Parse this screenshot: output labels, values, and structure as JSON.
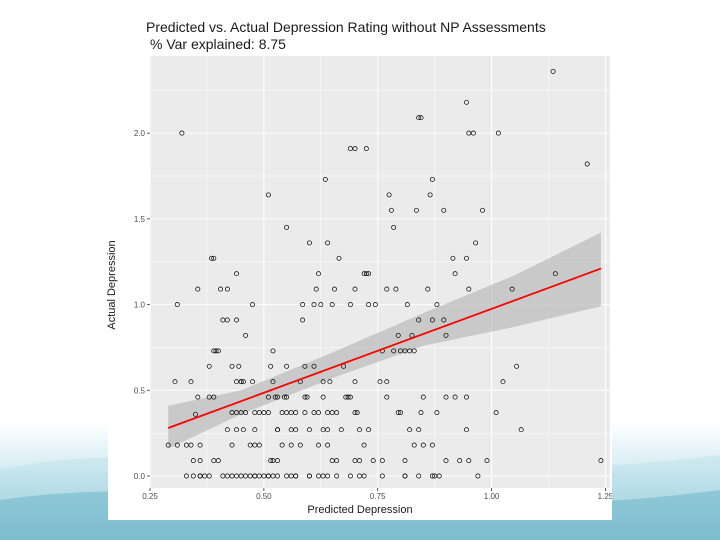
{
  "chart_data": {
    "type": "scatter",
    "title": "Predicted vs. Actual Depression Rating without NP Assessments",
    "subtitle": "% Var explained: 8.75",
    "xlabel": "Predicted Depression",
    "ylabel": "Actual Depression",
    "xlim": [
      0.25,
      1.26
    ],
    "ylim": [
      -0.07,
      2.45
    ],
    "x_ticks": [
      0.25,
      0.5,
      0.75,
      1.0,
      1.25
    ],
    "x_tick_labels": [
      "0.25",
      "0.50",
      "0.75",
      "1.00",
      "1.25"
    ],
    "y_ticks": [
      0.0,
      0.5,
      1.0,
      1.5,
      2.0
    ],
    "y_tick_labels": [
      "0.0",
      "0.5",
      "1.0",
      "1.5",
      "2.0"
    ],
    "grid": true,
    "colors": {
      "panel": "#ebebeb",
      "grid": "#ffffff",
      "line": "#ff0000",
      "band": "#bdbdbd",
      "points": "#000000"
    },
    "fit_line": {
      "x": [
        0.29,
        1.24
      ],
      "y": [
        0.28,
        1.21
      ]
    },
    "confidence_band": {
      "x": [
        0.29,
        0.45,
        0.65,
        0.85,
        1.05,
        1.24
      ],
      "lower": [
        0.16,
        0.36,
        0.57,
        0.76,
        0.87,
        0.99
      ],
      "upper": [
        0.41,
        0.5,
        0.72,
        0.95,
        1.17,
        1.42
      ]
    },
    "points": {
      "x": [
        1.135,
        0.945,
        0.32,
        1.015,
        0.96,
        0.95,
        0.84,
        0.845,
        1.21,
        0.69,
        0.7,
        0.725,
        0.635,
        0.775,
        0.87,
        0.51,
        0.865,
        0.78,
        0.835,
        0.895,
        0.55,
        0.6,
        0.64,
        0.785,
        0.98,
        0.965,
        0.915,
        0.945,
        0.39,
        0.385,
        0.665,
        0.62,
        0.72,
        0.725,
        0.73,
        0.44,
        0.405,
        0.42,
        0.79,
        0.77,
        1.045,
        0.95,
        0.86,
        0.92,
        0.655,
        0.615,
        0.625,
        0.7,
        0.355,
        0.31,
        0.475,
        0.585,
        0.61,
        0.65,
        0.69,
        0.73,
        0.745,
        0.815,
        0.88,
        0.84,
        0.87,
        0.895,
        0.41,
        0.42,
        0.44,
        0.825,
        0.795,
        0.46,
        0.585,
        0.82,
        0.9,
        1.14,
        0.39,
        0.395,
        0.52,
        0.83,
        0.785,
        0.76,
        0.8,
        0.81,
        0.4,
        0.445,
        0.305,
        0.34,
        0.38,
        0.43,
        0.55,
        0.59,
        0.61,
        0.58,
        0.63,
        0.675,
        0.7,
        0.755,
        0.77,
        1.055,
        1.025,
        0.515,
        0.52,
        0.44,
        0.45,
        0.45,
        0.455,
        0.475,
        0.59,
        0.63,
        0.68,
        0.645,
        0.77,
        0.92,
        0.945,
        0.355,
        0.38,
        0.39,
        0.51,
        0.525,
        0.545,
        0.53,
        0.55,
        0.595,
        0.685,
        0.69,
        0.55,
        0.61,
        0.64,
        0.7,
        0.65,
        0.705,
        0.795,
        0.8,
        0.845,
        0.85,
        0.88,
        0.9,
        0.35,
        0.43,
        0.44,
        0.45,
        0.46,
        0.48,
        0.49,
        0.5,
        0.51,
        0.54,
        0.56,
        0.57,
        0.59,
        0.62,
        0.66,
        0.42,
        0.44,
        0.455,
        0.48,
        0.53,
        0.53,
        0.56,
        0.57,
        0.6,
        0.63,
        0.64,
        0.67,
        0.71,
        0.73,
        0.82,
        0.84,
        1.01,
        0.34,
        0.36,
        0.43,
        0.47,
        0.48,
        0.49,
        0.54,
        0.56,
        0.58,
        0.62,
        0.64,
        0.72,
        0.83,
        0.85,
        0.87,
        0.945,
        1.065,
        0.29,
        0.31,
        0.33,
        0.345,
        0.36,
        0.39,
        0.4,
        0.52,
        0.515,
        0.53,
        0.65,
        0.66,
        0.7,
        0.71,
        0.74,
        0.76,
        0.81,
        0.33,
        0.345,
        0.36,
        0.38,
        0.41,
        0.43,
        0.45,
        0.47,
        0.48,
        0.5,
        0.51,
        0.52,
        0.56,
        0.57,
        0.6,
        0.62,
        0.64,
        0.69,
        0.72,
        0.81,
        0.84,
        0.87,
        0.9,
        0.93,
        0.95,
        0.99,
        1.24,
        0.36,
        0.37,
        0.42,
        0.44,
        0.46,
        0.48,
        0.49,
        0.51,
        0.53,
        0.55,
        0.57,
        0.6,
        0.63,
        0.66,
        0.71,
        0.76,
        0.81,
        0.875,
        0.885,
        0.97
      ],
      "y": [
        2.36,
        2.18,
        2.0,
        2.0,
        2.0,
        2.0,
        2.09,
        2.09,
        1.82,
        1.91,
        1.91,
        1.91,
        1.73,
        1.64,
        1.73,
        1.64,
        1.64,
        1.55,
        1.55,
        1.55,
        1.45,
        1.36,
        1.36,
        1.45,
        1.55,
        1.36,
        1.27,
        1.27,
        1.27,
        1.27,
        1.27,
        1.18,
        1.18,
        1.18,
        1.18,
        1.18,
        1.09,
        1.09,
        1.09,
        1.09,
        1.09,
        1.09,
        1.09,
        1.18,
        1.09,
        1.09,
        1.0,
        1.09,
        1.09,
        1.0,
        1.0,
        1.0,
        1.0,
        1.0,
        1.0,
        1.0,
        1.0,
        1.0,
        1.0,
        0.91,
        0.91,
        0.91,
        0.91,
        0.91,
        0.91,
        0.82,
        0.82,
        0.82,
        0.91,
        0.73,
        0.82,
        1.18,
        0.73,
        0.73,
        0.73,
        0.73,
        0.73,
        0.73,
        0.73,
        0.73,
        0.73,
        0.64,
        0.55,
        0.55,
        0.64,
        0.64,
        0.64,
        0.64,
        0.64,
        0.55,
        0.55,
        0.64,
        0.55,
        0.55,
        0.55,
        0.64,
        0.55,
        0.64,
        0.55,
        0.55,
        0.55,
        0.55,
        0.55,
        0.55,
        0.46,
        0.46,
        0.46,
        0.55,
        0.46,
        0.46,
        0.46,
        0.46,
        0.46,
        0.46,
        0.46,
        0.46,
        0.46,
        0.46,
        0.46,
        0.46,
        0.46,
        0.46,
        0.37,
        0.37,
        0.37,
        0.37,
        0.37,
        0.37,
        0.37,
        0.37,
        0.37,
        0.46,
        0.37,
        0.46,
        0.36,
        0.37,
        0.37,
        0.37,
        0.37,
        0.37,
        0.37,
        0.37,
        0.37,
        0.37,
        0.37,
        0.37,
        0.37,
        0.37,
        0.37,
        0.27,
        0.27,
        0.27,
        0.27,
        0.27,
        0.27,
        0.27,
        0.27,
        0.27,
        0.27,
        0.27,
        0.27,
        0.27,
        0.27,
        0.27,
        0.27,
        0.37,
        0.18,
        0.18,
        0.18,
        0.18,
        0.18,
        0.18,
        0.18,
        0.18,
        0.18,
        0.18,
        0.18,
        0.18,
        0.18,
        0.18,
        0.18,
        0.27,
        0.27,
        0.18,
        0.18,
        0.18,
        0.09,
        0.09,
        0.09,
        0.09,
        0.09,
        0.09,
        0.09,
        0.09,
        0.09,
        0.09,
        0.09,
        0.09,
        0.09,
        0.09,
        0.0,
        0.0,
        0.0,
        0.0,
        0.0,
        0.0,
        0.0,
        0.0,
        0.0,
        0.0,
        0.0,
        0.0,
        0.0,
        0.0,
        0.0,
        0.0,
        0.0,
        0.0,
        0.0,
        0.0,
        0.0,
        0.0,
        0.09,
        0.09,
        0.09,
        0.09,
        0.09,
        0.0,
        0.0,
        0.0,
        0.0,
        0.0,
        0.0,
        0.0,
        0.0,
        0.0,
        0.0,
        0.0,
        0.0,
        0.0,
        0.0,
        0.0,
        0.0,
        0.0,
        0.0,
        0.0,
        0.0
      ]
    }
  }
}
